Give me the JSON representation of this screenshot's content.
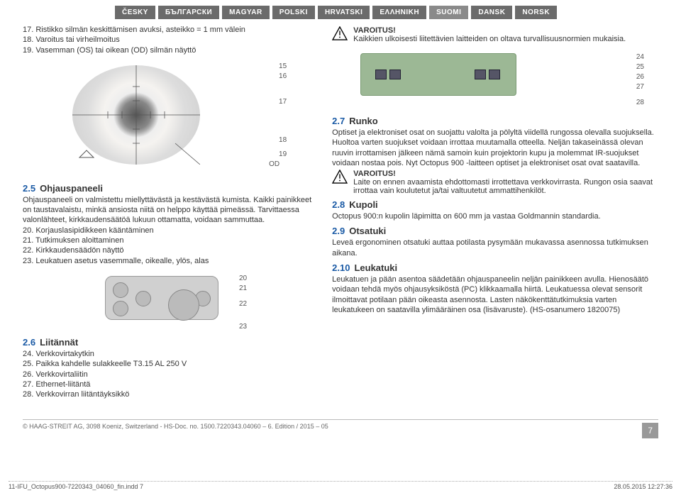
{
  "langs": [
    "ČESKY",
    "БЪЛГАРСКИ",
    "MAGYAR",
    "POLSKI",
    "HRVATSKI",
    "ΕΛΛΗΝΙΚΗ",
    "SUOMI",
    "DANSK",
    "NORSK"
  ],
  "activeLang": "SUOMI",
  "left": {
    "items17_19": [
      "17. Ristikko silmän keskittämisen avuksi, asteikko = 1 mm välein",
      "18. Varoitus tai virheilmoitus",
      "19. Vasemman (OS) tai oikean (OD) silmän näyttö"
    ],
    "eyeCallouts": {
      "c15": "15",
      "c16": "16",
      "c17": "17",
      "c18": "18",
      "c19": "19",
      "od": "OD"
    },
    "sec25": {
      "num": "2.5",
      "title": "Ohjauspaneeli",
      "body": "Ohjauspaneeli on valmistettu miellyttävästä ja kestävästä kumista. Kaikki painikkeet on taustavalaistu, minkä ansiosta niitä on helppo käyttää pimeässä. Tarvittaessa valonlähteet, kirkkaudensäätöä lukuun ottamatta, voidaan sammuttaa.",
      "list": [
        "20. Korjauslasipidikkeen kääntäminen",
        "21. Tutkimuksen aloittaminen",
        "22. Kirkkaudensäädön näyttö",
        "23. Leukatuen asetus vasemmalle, oikealle, ylös, alas"
      ]
    },
    "padCallouts": {
      "c20": "20",
      "c21": "21",
      "c22": "22",
      "c23": "23"
    },
    "sec26": {
      "num": "2.6",
      "title": "Liitännät",
      "list": [
        "24. Verkkovirtakytkin",
        "25. Paikka kahdelle sulakkeelle T3.15 AL 250 V",
        "26. Verkkovirtaliitin",
        "27. Ethernet-liitäntä",
        "28. Verkkovirran liitäntäyksikkö"
      ]
    }
  },
  "right": {
    "warn1": {
      "title": "VAROITUS!",
      "body": "Kaikkien ulkoisesti liitettävien laitteiden on oltava turvallisuusnormien mukaisia."
    },
    "connCallouts": {
      "c24": "24",
      "c25": "25",
      "c26": "26",
      "c27": "27",
      "c28": "28"
    },
    "sec27": {
      "num": "2.7",
      "title": "Runko",
      "body": "Optiset ja elektroniset osat on suojattu valolta ja pölyltä viidellä rungossa olevalla suojuksella. Huoltoa varten suojukset voidaan irrottaa muutamalla otteella. Neljän takaseinässä olevan ruuvin irrottamisen jälkeen nämä samoin kuin projektorin kupu ja molemmat IR-suojukset voidaan nostaa pois. Nyt Octopus 900 -laitteen optiset ja elektroniset osat ovat saatavilla."
    },
    "warn2": {
      "title": "VAROITUS!",
      "body": "Laite on ennen avaamista ehdottomasti irrottettava verkkovirrasta. Rungon osia saavat irrottaa vain koulutetut ja/tai valtuutetut ammattihenkilöt."
    },
    "sec28": {
      "num": "2.8",
      "title": "Kupoli",
      "body": "Octopus 900:n kupolin läpimitta on 600 mm ja vastaa Goldmannin standardia."
    },
    "sec29": {
      "num": "2.9",
      "title": "Otsatuki",
      "body": "Leveä ergonominen otsatuki auttaa potilasta pysymään mukavassa asennossa tutkimuksen aikana."
    },
    "sec210": {
      "num": "2.10",
      "title": "Leukatuki",
      "body": "Leukatuen ja pään asentoa säädetään ohjauspaneelin neljän painikkeen avulla. Hienosäätö voidaan tehdä myös ohjausyksiköstä (PC) klikkaamalla hiirtä. Leukatuessa olevat sensorit ilmoittavat potilaan pään oikeasta asennosta. Lasten näkökenttätutkimuksia varten leukatukeen on saatavilla ylimääräinen osa (lisävaruste). (HS-osanumero 1820075)"
    }
  },
  "footer": {
    "copyright": "© HAAG-STREIT AG, 3098 Koeniz, Switzerland - HS-Doc. no. 1500.7220343.04060 – 6. Edition / 2015 – 05",
    "page": "7"
  },
  "meta": {
    "file": "11-IFU_Octopus900-7220343_04060_fin.indd   7",
    "stamp": "28.05.2015   12:27:36"
  }
}
